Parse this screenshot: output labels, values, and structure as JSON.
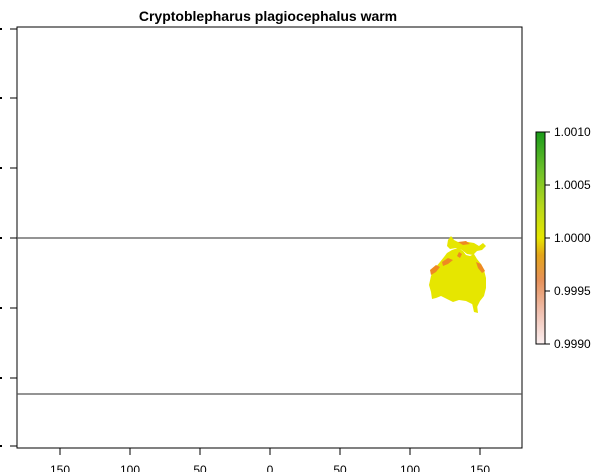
{
  "title": "Cryptoblepharus plagiocephalus warm",
  "x_axis": {
    "ticks": [
      -150,
      -100,
      -50,
      0,
      50,
      100,
      150
    ],
    "tick_labels": [
      "150",
      "100",
      "50",
      "0",
      "50",
      "100",
      "150"
    ],
    "range": [
      -180,
      180
    ]
  },
  "y_axis": {
    "range": [
      -90,
      90
    ]
  },
  "reference_lines_lat": [
    0,
    -66
  ],
  "legend": {
    "ticks": [
      0.999,
      0.9995,
      1.0,
      1.0005,
      1.001
    ],
    "tick_labels": [
      "0.9990",
      "0.9995",
      "1.0000",
      "1.0005",
      "1.0010"
    ],
    "range": [
      0.999,
      1.001
    ],
    "colors": [
      "#f2f2f2",
      "#eab3a3",
      "#e37a2f",
      "#e8c810",
      "#e6e600",
      "#9acd32",
      "#52b830",
      "#1a9c1a"
    ]
  },
  "raster_colors": {
    "main": "#e6e600",
    "edge": "#ee8a22"
  }
}
